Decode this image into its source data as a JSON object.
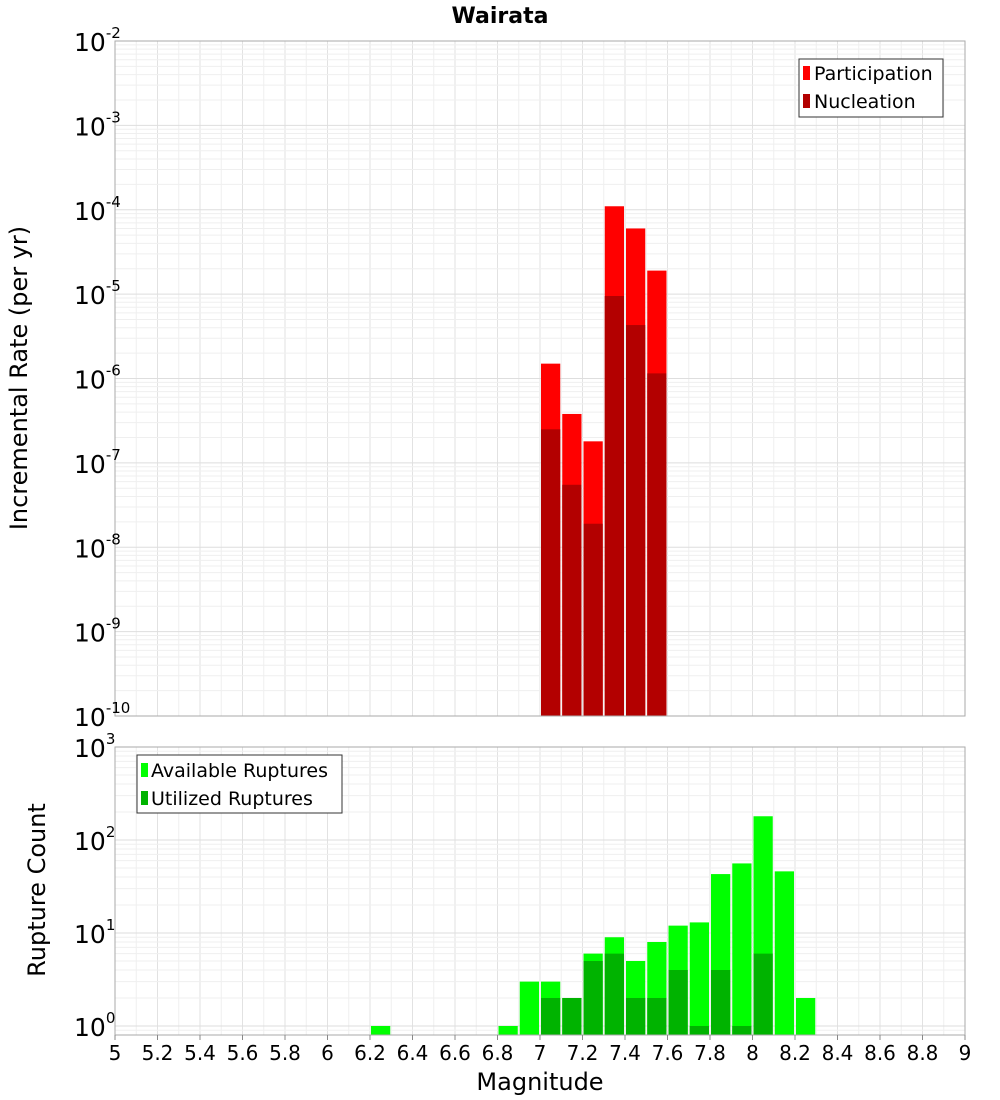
{
  "chart_data": [
    {
      "type": "bar",
      "title": "Wairata",
      "xlabel": "",
      "ylabel": "Incremental Rate (per yr)",
      "yscale": "log",
      "ylim": [
        1e-10,
        0.01
      ],
      "xlim": [
        5,
        9
      ],
      "bin_width": 0.1,
      "y_ticks": [
        {
          "base": "10",
          "exp": "-10"
        },
        {
          "base": "10",
          "exp": "-9"
        },
        {
          "base": "10",
          "exp": "-8"
        },
        {
          "base": "10",
          "exp": "-7"
        },
        {
          "base": "10",
          "exp": "-6"
        },
        {
          "base": "10",
          "exp": "-5"
        },
        {
          "base": "10",
          "exp": "-4"
        },
        {
          "base": "10",
          "exp": "-3"
        },
        {
          "base": "10",
          "exp": "-2"
        }
      ],
      "grid": true,
      "legend_position": "top-right",
      "colors": {
        "Participation": "#ff0000",
        "Nucleation": "#b30000"
      },
      "series": [
        {
          "name": "Participation",
          "x": [
            7.05,
            7.15,
            7.25,
            7.35,
            7.45,
            7.55
          ],
          "values": [
            1.5e-06,
            3.8e-07,
            1.8e-07,
            0.00011,
            6e-05,
            1.9e-05
          ]
        },
        {
          "name": "Nucleation",
          "x": [
            7.05,
            7.15,
            7.25,
            7.35,
            7.45,
            7.55
          ],
          "values": [
            2.5e-07,
            5.5e-08,
            1.9e-08,
            9.5e-06,
            4.3e-06,
            1.15e-06
          ]
        }
      ]
    },
    {
      "type": "bar",
      "xlabel": "Magnitude",
      "ylabel": "Rupture Count",
      "yscale": "log",
      "ylim": [
        0.8,
        1000
      ],
      "xlim": [
        5,
        9
      ],
      "bin_width": 0.1,
      "y_ticks": [
        {
          "value": 1,
          "base": "10",
          "exp": "0"
        },
        {
          "value": 10,
          "base": "10",
          "exp": "1"
        },
        {
          "value": 100,
          "base": "10",
          "exp": "2"
        },
        {
          "value": 1000,
          "base": "10",
          "exp": "3"
        }
      ],
      "x_ticks": [
        "5",
        "5.2",
        "5.4",
        "5.6",
        "5.8",
        "6",
        "6.2",
        "6.4",
        "6.6",
        "6.8",
        "7",
        "7.2",
        "7.4",
        "7.6",
        "7.8",
        "8",
        "8.2",
        "8.4",
        "8.6",
        "8.8",
        "9"
      ],
      "grid": true,
      "legend_position": "top-left",
      "colors": {
        "Available Ruptures": "#00ff00",
        "Utilized Ruptures": "#00b300"
      },
      "series": [
        {
          "name": "Available Ruptures",
          "x": [
            6.25,
            6.85,
            6.95,
            7.05,
            7.15,
            7.25,
            7.35,
            7.45,
            7.55,
            7.65,
            7.75,
            7.85,
            7.95,
            8.05,
            8.15,
            8.25
          ],
          "values": [
            1,
            1,
            3,
            3,
            2,
            6,
            9,
            5,
            8,
            12,
            13,
            43,
            56,
            180,
            46,
            2
          ]
        },
        {
          "name": "Utilized Ruptures",
          "x": [
            7.05,
            7.15,
            7.25,
            7.35,
            7.45,
            7.55,
            7.65,
            7.75,
            7.85,
            7.95,
            8.05
          ],
          "values": [
            2,
            2,
            5,
            6,
            2,
            2,
            4,
            1,
            4,
            1,
            6
          ]
        }
      ]
    }
  ]
}
